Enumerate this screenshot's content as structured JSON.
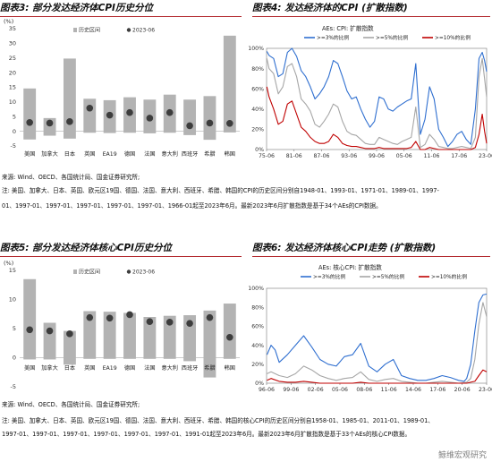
{
  "figures": {
    "fig3_title": "图表3: 部分发达经济体CPI历史分位",
    "fig4_title": "图表4: 发达经济体的CPI (扩散指数)",
    "fig5_title": "图表5: 部分发达经济体核心CPI历史分位",
    "fig6_title": "图表6: 发达经济体核心CPI走势 (扩散指数)",
    "source1": "来源: Wind、OECD、各国统计局、国金证券研究所;",
    "note1a": "注: 美国、加拿大、日本、英国、欧元区19国、德国、法国、意大利、西班牙、希腊、韩国的CPI的历史区间分别自1948-01、1993-01、1971-01、1989-01、1997-",
    "note1b": "01、1997-01、1997-01、1997-01、1997-01、1997-01、1966-01起至2023年6月。最新2023年6月扩散指数是基于34个AEs的CPI数据。",
    "source2": "来源: Wind、OECD、各国统计局、国金证券研究所;",
    "note2a": "注: 美国、加拿大、日本、英国、欧元区19国、德国、法国、意大利、西班牙、希腊、韩国的核心CPI的历史区间分别自1958-01、1985-01、2011-01、1989-01、",
    "note2b": "1997-01、1997-01、1997-01、1997-01、1997-01、1997-01、1991-01起至2023年6月。最新2023年6月扩散指数是基于33个AEs的核心CPI数据。",
    "watermark": "鲸维宏观研究"
  },
  "chart_data": [
    {
      "type": "bar",
      "unit": "(%)",
      "legend": [
        "历史区间",
        "2023-06"
      ],
      "categories": [
        "美国",
        "加拿大",
        "日本",
        "英国",
        "EA19",
        "德国",
        "法国",
        "意大利",
        "西班牙",
        "希腊",
        "韩国"
      ],
      "range_min": [
        -2.8,
        -1.5,
        -2.5,
        -0.5,
        -0.6,
        -0.5,
        -0.7,
        -0.5,
        -1.3,
        -2.9,
        -0.4
      ],
      "range_max": [
        14.6,
        4.5,
        24.8,
        11.1,
        10.6,
        11.6,
        10.8,
        12.5,
        10.8,
        12.0,
        32.6
      ],
      "latest": [
        3.0,
        2.8,
        3.3,
        7.9,
        5.5,
        6.4,
        4.5,
        6.4,
        1.9,
        2.8,
        2.7
      ],
      "ylim": [
        -5,
        35
      ],
      "yticks": [
        -5,
        0,
        5,
        10,
        15,
        20,
        25,
        30,
        35
      ],
      "colors": {
        "range": "#b3b3b3",
        "latest": "#3d3d3d"
      }
    },
    {
      "type": "line",
      "legend_title": "AEs: CPI: 扩散指数",
      "series_names": [
        ">=3%的比例",
        ">=5%的比例",
        ">=10%的比例"
      ],
      "colors": [
        "#2f6fd0",
        "#a6a6a6",
        "#c00000"
      ],
      "xticks": [
        "75-06",
        "81-06",
        "87-06",
        "93-06",
        "99-06",
        "05-06",
        "11-06",
        "17-06",
        "23-06"
      ],
      "yticks": [
        "0%",
        "20%",
        "40%",
        "60%",
        "80%",
        "100%"
      ],
      "ylim": [
        0,
        100
      ],
      "x_range": [
        1975.45,
        2023.45
      ],
      "s1": [
        [
          1975.5,
          97
        ],
        [
          1976,
          93
        ],
        [
          1977,
          90
        ],
        [
          1978,
          72
        ],
        [
          1979,
          75
        ],
        [
          1980,
          96
        ],
        [
          1981,
          100
        ],
        [
          1982,
          92
        ],
        [
          1983,
          78
        ],
        [
          1984,
          72
        ],
        [
          1985,
          62
        ],
        [
          1986,
          50
        ],
        [
          1987,
          55
        ],
        [
          1988,
          62
        ],
        [
          1989,
          72
        ],
        [
          1990,
          88
        ],
        [
          1991,
          85
        ],
        [
          1992,
          72
        ],
        [
          1993,
          58
        ],
        [
          1994,
          50
        ],
        [
          1995,
          52
        ],
        [
          1996,
          40
        ],
        [
          1997,
          30
        ],
        [
          1998,
          22
        ],
        [
          1999,
          28
        ],
        [
          2000,
          52
        ],
        [
          2001,
          50
        ],
        [
          2002,
          40
        ],
        [
          2003,
          38
        ],
        [
          2004,
          42
        ],
        [
          2005,
          45
        ],
        [
          2006,
          48
        ],
        [
          2007,
          50
        ],
        [
          2008,
          85
        ],
        [
          2009,
          15
        ],
        [
          2010,
          30
        ],
        [
          2011,
          62
        ],
        [
          2012,
          50
        ],
        [
          2013,
          20
        ],
        [
          2014,
          12
        ],
        [
          2015,
          3
        ],
        [
          2016,
          8
        ],
        [
          2017,
          15
        ],
        [
          2018,
          18
        ],
        [
          2019,
          10
        ],
        [
          2020,
          5
        ],
        [
          2021,
          40
        ],
        [
          2021.8,
          90
        ],
        [
          2022.5,
          96
        ],
        [
          2023,
          88
        ],
        [
          2023.45,
          77
        ]
      ],
      "s2": [
        [
          1975.5,
          90
        ],
        [
          1976,
          80
        ],
        [
          1977,
          75
        ],
        [
          1978,
          55
        ],
        [
          1979,
          62
        ],
        [
          1980,
          82
        ],
        [
          1981,
          85
        ],
        [
          1982,
          72
        ],
        [
          1983,
          50
        ],
        [
          1984,
          45
        ],
        [
          1985,
          38
        ],
        [
          1986,
          25
        ],
        [
          1987,
          22
        ],
        [
          1988,
          28
        ],
        [
          1989,
          35
        ],
        [
          1990,
          45
        ],
        [
          1991,
          42
        ],
        [
          1992,
          28
        ],
        [
          1993,
          18
        ],
        [
          1994,
          15
        ],
        [
          1995,
          14
        ],
        [
          1996,
          10
        ],
        [
          1997,
          6
        ],
        [
          1998,
          5
        ],
        [
          1999,
          5
        ],
        [
          2000,
          12
        ],
        [
          2001,
          10
        ],
        [
          2002,
          8
        ],
        [
          2003,
          6
        ],
        [
          2004,
          5
        ],
        [
          2005,
          8
        ],
        [
          2006,
          10
        ],
        [
          2007,
          12
        ],
        [
          2008,
          42
        ],
        [
          2009,
          2
        ],
        [
          2010,
          5
        ],
        [
          2011,
          15
        ],
        [
          2012,
          10
        ],
        [
          2013,
          3
        ],
        [
          2014,
          2
        ],
        [
          2015,
          1
        ],
        [
          2016,
          1
        ],
        [
          2017,
          2
        ],
        [
          2018,
          3
        ],
        [
          2019,
          2
        ],
        [
          2020,
          1
        ],
        [
          2021,
          12
        ],
        [
          2021.8,
          72
        ],
        [
          2022.5,
          90
        ],
        [
          2023,
          70
        ],
        [
          2023.45,
          52
        ]
      ],
      "s3": [
        [
          1975.5,
          62
        ],
        [
          1976,
          52
        ],
        [
          1977,
          40
        ],
        [
          1978,
          25
        ],
        [
          1979,
          28
        ],
        [
          1980,
          45
        ],
        [
          1981,
          48
        ],
        [
          1982,
          35
        ],
        [
          1983,
          22
        ],
        [
          1984,
          18
        ],
        [
          1985,
          12
        ],
        [
          1986,
          8
        ],
        [
          1987,
          6
        ],
        [
          1988,
          6
        ],
        [
          1989,
          8
        ],
        [
          1990,
          15
        ],
        [
          1991,
          12
        ],
        [
          1992,
          6
        ],
        [
          1993,
          4
        ],
        [
          1994,
          3
        ],
        [
          1995,
          3
        ],
        [
          1996,
          2
        ],
        [
          1997,
          1
        ],
        [
          1998,
          1
        ],
        [
          1999,
          1
        ],
        [
          2000,
          2
        ],
        [
          2001,
          1
        ],
        [
          2002,
          1
        ],
        [
          2003,
          1
        ],
        [
          2004,
          1
        ],
        [
          2005,
          1
        ],
        [
          2006,
          1
        ],
        [
          2007,
          2
        ],
        [
          2008,
          8
        ],
        [
          2009,
          0
        ],
        [
          2010,
          0
        ],
        [
          2011,
          2
        ],
        [
          2012,
          1
        ],
        [
          2013,
          0
        ],
        [
          2014,
          0
        ],
        [
          2015,
          0
        ],
        [
          2016,
          0
        ],
        [
          2017,
          0
        ],
        [
          2018,
          0
        ],
        [
          2019,
          0
        ],
        [
          2020,
          0
        ],
        [
          2021,
          2
        ],
        [
          2021.8,
          15
        ],
        [
          2022.5,
          35
        ],
        [
          2023,
          18
        ],
        [
          2023.45,
          6
        ]
      ]
    },
    {
      "type": "bar",
      "unit": "(%)",
      "legend": [
        "历史区间",
        "2023-06"
      ],
      "categories": [
        "美国",
        "加拿大",
        "日本",
        "英国",
        "EA19",
        "德国",
        "法国",
        "意大利",
        "西班牙",
        "希腊",
        "韩国"
      ],
      "range_min": [
        -0.3,
        -0.3,
        -1.2,
        -0.2,
        -0.2,
        -0.2,
        -0.2,
        -0.2,
        -0.6,
        -3.4,
        -0.2
      ],
      "range_max": [
        13.5,
        6.0,
        4.6,
        8.0,
        7.9,
        7.7,
        7.0,
        7.2,
        7.3,
        8.1,
        9.3
      ],
      "latest": [
        4.8,
        4.6,
        4.1,
        6.9,
        6.8,
        7.4,
        6.2,
        6.1,
        5.9,
        6.9,
        3.5
      ],
      "ylim": [
        -5,
        15
      ],
      "yticks": [
        -5,
        0,
        5,
        10,
        15
      ],
      "colors": {
        "range": "#b3b3b3",
        "latest": "#3d3d3d"
      }
    },
    {
      "type": "line",
      "legend_title": "AEs: 核心CPI: 扩散指数",
      "series_names": [
        ">=3%的比例",
        ">=5%的比例",
        ">=10%的比例"
      ],
      "colors": [
        "#2f6fd0",
        "#a6a6a6",
        "#c00000"
      ],
      "xticks": [
        "96-06",
        "99-06",
        "02-06",
        "05-06",
        "08-06",
        "11-06",
        "14-06",
        "17-06",
        "20-06",
        "23-06"
      ],
      "yticks": [
        "0%",
        "20%",
        "40%",
        "60%",
        "80%",
        "100%"
      ],
      "ylim": [
        0,
        100
      ],
      "x_range": [
        1996.45,
        2023.45
      ],
      "s1": [
        [
          1996.5,
          30
        ],
        [
          1997,
          40
        ],
        [
          1997.5,
          35
        ],
        [
          1998,
          22
        ],
        [
          1999,
          30
        ],
        [
          2000,
          40
        ],
        [
          2001,
          50
        ],
        [
          2002,
          38
        ],
        [
          2003,
          25
        ],
        [
          2004,
          20
        ],
        [
          2005,
          18
        ],
        [
          2006,
          28
        ],
        [
          2007,
          30
        ],
        [
          2008,
          42
        ],
        [
          2009,
          18
        ],
        [
          2010,
          12
        ],
        [
          2011,
          20
        ],
        [
          2012,
          25
        ],
        [
          2013,
          8
        ],
        [
          2014,
          5
        ],
        [
          2015,
          3
        ],
        [
          2016,
          3
        ],
        [
          2017,
          5
        ],
        [
          2018,
          8
        ],
        [
          2019,
          6
        ],
        [
          2020,
          3
        ],
        [
          2020.7,
          2
        ],
        [
          2021,
          5
        ],
        [
          2021.5,
          20
        ],
        [
          2022,
          55
        ],
        [
          2022.5,
          85
        ],
        [
          2023,
          93
        ],
        [
          2023.45,
          94
        ]
      ],
      "s2": [
        [
          1996.5,
          10
        ],
        [
          1997,
          12
        ],
        [
          1998,
          8
        ],
        [
          1999,
          6
        ],
        [
          2000,
          10
        ],
        [
          2001,
          18
        ],
        [
          2002,
          14
        ],
        [
          2003,
          8
        ],
        [
          2004,
          5
        ],
        [
          2005,
          3
        ],
        [
          2006,
          5
        ],
        [
          2007,
          6
        ],
        [
          2008,
          12
        ],
        [
          2009,
          4
        ],
        [
          2010,
          2
        ],
        [
          2011,
          4
        ],
        [
          2012,
          5
        ],
        [
          2013,
          2
        ],
        [
          2014,
          1
        ],
        [
          2015,
          0
        ],
        [
          2016,
          0
        ],
        [
          2017,
          1
        ],
        [
          2018,
          2
        ],
        [
          2019,
          1
        ],
        [
          2020,
          0
        ],
        [
          2021,
          1
        ],
        [
          2021.5,
          5
        ],
        [
          2022,
          25
        ],
        [
          2022.5,
          62
        ],
        [
          2023,
          85
        ],
        [
          2023.45,
          70
        ]
      ],
      "s3": [
        [
          1996.5,
          3
        ],
        [
          1997,
          5
        ],
        [
          1998,
          2
        ],
        [
          1999,
          1
        ],
        [
          2000,
          1
        ],
        [
          2001,
          2
        ],
        [
          2002,
          1
        ],
        [
          2003,
          0
        ],
        [
          2004,
          0
        ],
        [
          2005,
          0
        ],
        [
          2006,
          0
        ],
        [
          2007,
          0
        ],
        [
          2008,
          1
        ],
        [
          2009,
          0
        ],
        [
          2010,
          0
        ],
        [
          2015,
          0
        ],
        [
          2020,
          0
        ],
        [
          2021,
          0
        ],
        [
          2021.5,
          1
        ],
        [
          2022,
          2
        ],
        [
          2022.5,
          8
        ],
        [
          2023,
          14
        ],
        [
          2023.45,
          12
        ]
      ]
    }
  ]
}
